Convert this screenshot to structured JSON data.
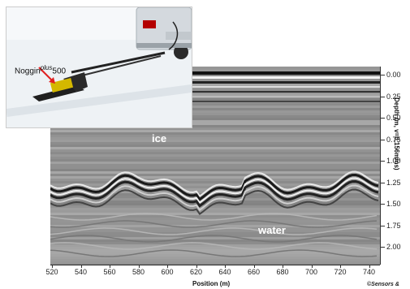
{
  "figure": {
    "device_label_main": "Noggin",
    "device_label_sup": "plus",
    "device_label_num": "500",
    "ice_label": "ice",
    "water_label": "water",
    "xlabel": "Position (m)",
    "ylabel": "Depth (m, v=0.156m/ns)",
    "credit": "©Sensors &",
    "x_ticks": [
      "520",
      "540",
      "560",
      "580",
      "600",
      "620",
      "640",
      "660",
      "680",
      "700",
      "720",
      "740"
    ],
    "depth_ticks": [
      "0.00",
      "0.25",
      "0.50",
      "0.75",
      "1.00",
      "1.25",
      "1.50",
      "1.75",
      "2.00"
    ]
  },
  "colors": {
    "radar_bg": "#9a9a9a",
    "snow": "#e8eef3",
    "truck": "#d8dde2",
    "arrow": "#e02020",
    "sled": "#222222",
    "device": "#d4b800"
  },
  "icons": [
    "car-icon",
    "sled-icon",
    "arrow-icon"
  ]
}
